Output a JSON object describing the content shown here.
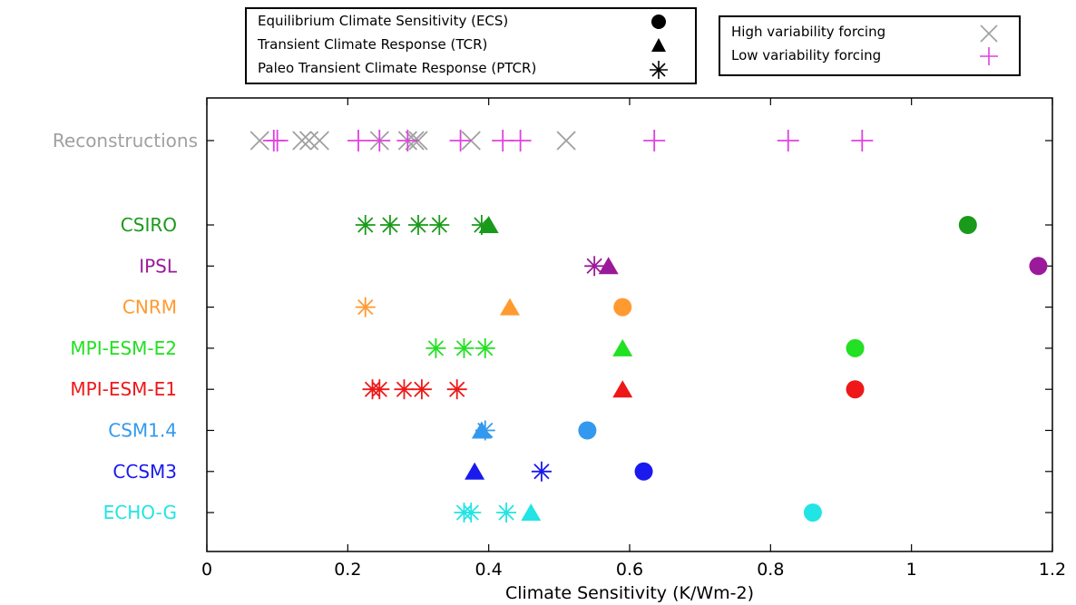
{
  "legend_methods": [
    {
      "label": "Equilibrium Climate Sensitivity (ECS)",
      "symbol": "circle"
    },
    {
      "label": "Transient Climate Response (TCR)",
      "symbol": "triangle"
    },
    {
      "label": "Paleo Transient Climate Response (PTCR)",
      "symbol": "asterisk"
    }
  ],
  "legend_forcing": [
    {
      "label": "High variability forcing",
      "symbol": "x",
      "color": "#a0a0a0"
    },
    {
      "label": "Low variability forcing",
      "symbol": "plus",
      "color": "#e040e0"
    }
  ],
  "chart_data": {
    "type": "scatter",
    "xlabel": "Climate Sensitivity (K/Wm-2)",
    "xlim": [
      0,
      1.2
    ],
    "xticks": [
      0,
      0.2,
      0.4,
      0.6,
      0.8,
      1,
      1.2
    ],
    "xtick_labels": [
      "0",
      "0.2",
      "0.4",
      "0.6",
      "0.8",
      "1",
      "1.2"
    ],
    "grid": false,
    "rows": [
      {
        "name": "Reconstructions",
        "color": "#a0a0a0",
        "high_variability": [
          0.075,
          0.135,
          0.145,
          0.16,
          0.245,
          0.285,
          0.295,
          0.3,
          0.375,
          0.51
        ],
        "low_variability": [
          0.095,
          0.1,
          0.215,
          0.245,
          0.285,
          0.36,
          0.42,
          0.445,
          0.635,
          0.825,
          0.93
        ]
      },
      {
        "name": "CSIRO",
        "color": "#1a9a1a",
        "ecs": 1.08,
        "tcr": [
          0.4
        ],
        "ptcr": [
          0.225,
          0.26,
          0.3,
          0.33,
          0.39
        ]
      },
      {
        "name": "IPSL",
        "color": "#9a1a9a",
        "ecs": 1.18,
        "tcr": [
          0.57
        ],
        "ptcr": [
          0.55
        ]
      },
      {
        "name": "CNRM",
        "color": "#ff9a30",
        "ecs": 0.59,
        "tcr": [
          0.43
        ],
        "ptcr": [
          0.225
        ]
      },
      {
        "name": "MPI-ESM-E2",
        "color": "#22e022",
        "ecs": 0.92,
        "tcr": [
          0.59
        ],
        "ptcr": [
          0.325,
          0.365,
          0.395
        ]
      },
      {
        "name": "MPI-ESM-E1",
        "color": "#ee1818",
        "ecs": 0.92,
        "tcr": [
          0.59
        ],
        "ptcr": [
          0.235,
          0.245,
          0.28,
          0.305,
          0.355
        ]
      },
      {
        "name": "CSM1.4",
        "color": "#3399ee",
        "ecs": 0.54,
        "tcr": [
          0.39
        ],
        "ptcr": [
          0.395
        ]
      },
      {
        "name": "CCSM3",
        "color": "#1a1aee",
        "ecs": 0.62,
        "tcr": [
          0.38
        ],
        "ptcr": [
          0.475
        ]
      },
      {
        "name": "ECHO-G",
        "color": "#22e4e4",
        "ecs": 0.86,
        "tcr": [
          0.46
        ],
        "ptcr": [
          0.365,
          0.375,
          0.425
        ]
      }
    ]
  }
}
